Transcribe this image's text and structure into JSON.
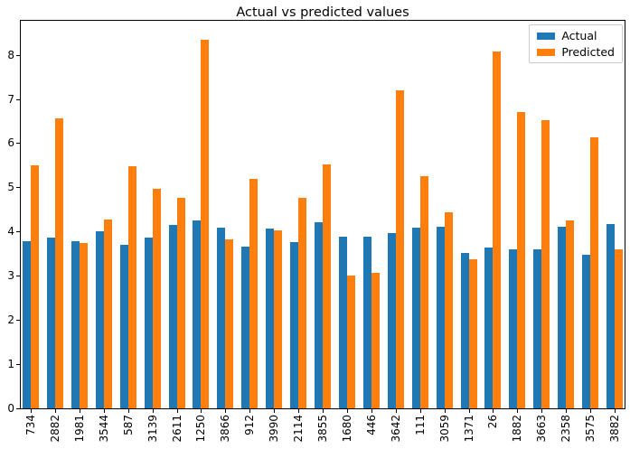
{
  "chart_data": {
    "type": "bar",
    "title": "Actual vs predicted values",
    "categories": [
      "734",
      "2882",
      "1981",
      "3544",
      "587",
      "3139",
      "2611",
      "1250",
      "3866",
      "912",
      "3990",
      "2114",
      "3855",
      "1680",
      "446",
      "3642",
      "111",
      "3059",
      "1371",
      "26",
      "1882",
      "3663",
      "2358",
      "3575",
      "3882"
    ],
    "series": [
      {
        "name": "Actual",
        "color": "#1f77b4",
        "values": [
          3.79,
          3.87,
          3.79,
          4.01,
          3.7,
          3.87,
          4.16,
          4.26,
          4.09,
          3.67,
          4.07,
          3.77,
          4.21,
          3.89,
          3.89,
          3.96,
          4.08,
          4.11,
          3.52,
          3.64,
          3.6,
          3.59,
          4.1,
          3.47,
          4.17
        ]
      },
      {
        "name": "Predicted",
        "color": "#ff7f0e",
        "values": [
          5.51,
          6.56,
          3.74,
          4.28,
          5.48,
          4.96,
          4.76,
          8.34,
          3.82,
          5.2,
          4.02,
          4.76,
          5.53,
          3.0,
          3.06,
          7.2,
          5.26,
          4.44,
          3.38,
          8.07,
          6.71,
          6.52,
          4.25,
          6.13,
          3.6
        ]
      }
    ],
    "xlabel": "",
    "ylabel": "",
    "ylim": [
      0,
      8.77
    ],
    "yticks": [
      0,
      1,
      2,
      3,
      4,
      5,
      6,
      7,
      8
    ],
    "grid": false,
    "legend_position": "upper right",
    "x_tick_rotation": 90,
    "background_color": "#ffffff",
    "frame_color": "#000000"
  }
}
